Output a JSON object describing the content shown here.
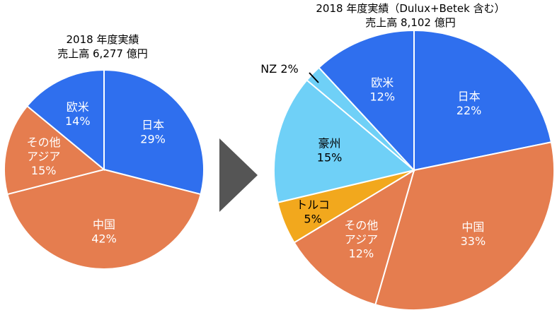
{
  "chart_data": [
    {
      "type": "pie",
      "title": "2018 年度実績",
      "subtitle": "売上高 6,277 億円",
      "slices": [
        {
          "label": "日本",
          "value": 29,
          "display": "29%",
          "color": "#2f6fee"
        },
        {
          "label": "中国",
          "value": 42,
          "display": "42%",
          "color": "#e57d4f"
        },
        {
          "label": "その他アジア",
          "label_lines": [
            "その他",
            "アジア"
          ],
          "value": 15,
          "display": "15%",
          "color": "#e57d4f"
        },
        {
          "label": "欧米",
          "value": 14,
          "display": "14%",
          "color": "#2f6fee"
        }
      ]
    },
    {
      "type": "pie",
      "title": "2018 年度実績（Dulux+Betek 含む）",
      "subtitle": "売上高 8,102 億円",
      "slices": [
        {
          "label": "日本",
          "value": 22,
          "display": "22%",
          "color": "#2f6fee"
        },
        {
          "label": "中国",
          "value": 33,
          "display": "33%",
          "color": "#e57d4f"
        },
        {
          "label": "その他アジア",
          "label_lines": [
            "その他",
            "アジア"
          ],
          "value": 12,
          "display": "12%",
          "color": "#e57d4f"
        },
        {
          "label": "トルコ",
          "value": 5,
          "display": "5%",
          "color": "#f2a81d"
        },
        {
          "label": "豪州",
          "value": 15,
          "display": "15%",
          "color": "#6fd0f7"
        },
        {
          "label": "NZ",
          "value": 2,
          "display": "2%",
          "color": "#6fd0f7"
        },
        {
          "label": "欧米",
          "value": 12,
          "display": "12%",
          "color": "#2f6fee"
        }
      ]
    }
  ],
  "colors": {
    "arrow": "#555555",
    "separator": "#ffffff"
  }
}
